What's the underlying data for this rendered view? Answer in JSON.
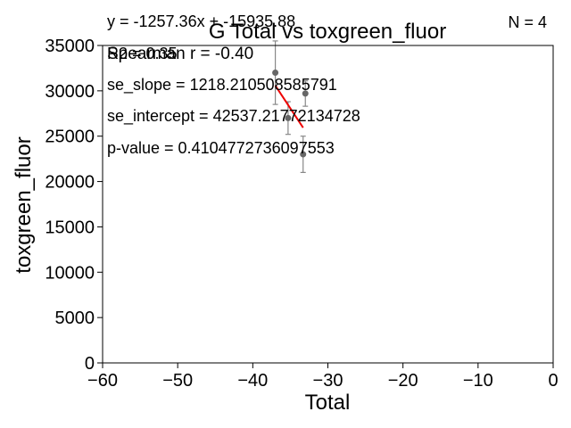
{
  "chart_data": {
    "type": "scatter",
    "title": "G Total vs toxgreen_fluor",
    "xlabel": "Total",
    "ylabel": "toxgreen_fluor",
    "xlim": [
      -60,
      0
    ],
    "ylim": [
      0,
      35000
    ],
    "xticks": [
      -60,
      -50,
      -40,
      -30,
      -20,
      -10,
      0
    ],
    "yticks": [
      0,
      5000,
      10000,
      15000,
      20000,
      25000,
      30000,
      35000
    ],
    "xtick_labels": [
      "−60",
      "−50",
      "−40",
      "−30",
      "−20",
      "−10",
      "0"
    ],
    "ytick_labels": [
      "0",
      "5000",
      "10000",
      "15000",
      "20000",
      "25000",
      "30000",
      "35000"
    ],
    "grid": false,
    "points": [
      {
        "x": -37.0,
        "y": 32000,
        "err": 3500
      },
      {
        "x": -35.3,
        "y": 27000,
        "err": 1800
      },
      {
        "x": -33.3,
        "y": 23000,
        "err": 2000
      },
      {
        "x": -33.0,
        "y": 29700,
        "err": 1400
      }
    ],
    "point_color": "#666666",
    "fit_line": {
      "x": [
        -37.0,
        -33.3
      ],
      "slope": -1257.36,
      "intercept": -15935.88,
      "color": "#ee0000"
    },
    "annotations": {
      "equation": "y = -1257.36x + -15935.88",
      "r2": "R2 = 0.35",
      "spearman": "Spearman r = -0.40",
      "se_slope": "se_slope = 1218.210508585791",
      "se_intercept": "se_intercept = 42537.21772134728",
      "p_value": "p-value = 0.4104772736097553",
      "n": "N = 4"
    }
  }
}
